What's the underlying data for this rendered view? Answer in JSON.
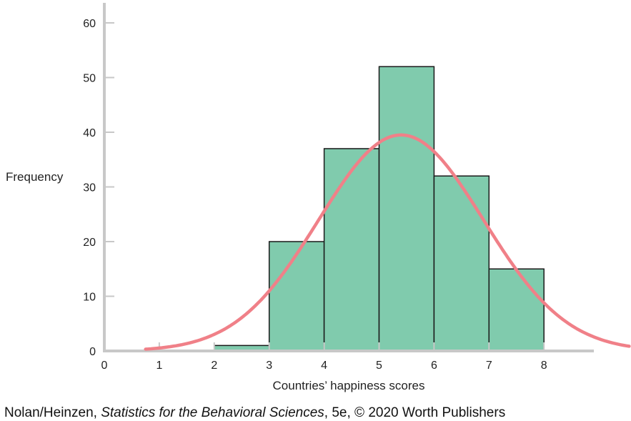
{
  "chart_data": {
    "type": "bar",
    "title": "",
    "xlabel": "Countries’ happiness scores",
    "ylabel": "Frequency",
    "xlim": [
      0,
      8.9
    ],
    "ylim": [
      0,
      63
    ],
    "xticks": [
      "0",
      "1",
      "2",
      "3",
      "4",
      "5",
      "6",
      "7",
      "8"
    ],
    "yticks": [
      "0",
      "10",
      "20",
      "30",
      "40",
      "50",
      "60"
    ],
    "bins": [
      {
        "x0": 2,
        "x1": 3,
        "value": 1
      },
      {
        "x0": 3,
        "x1": 4,
        "value": 20
      },
      {
        "x0": 4,
        "x1": 5,
        "value": 37
      },
      {
        "x0": 5,
        "x1": 6,
        "value": 52
      },
      {
        "x0": 6,
        "x1": 7,
        "value": 32
      },
      {
        "x0": 7,
        "x1": 8,
        "value": 15
      }
    ],
    "overlay": {
      "type": "normal-curve",
      "mean": 5.4,
      "sd": 1.5,
      "peak": 39.5
    },
    "grid": false,
    "bar_color": "#80cbad",
    "bar_edge_color": "#1a1a1a",
    "curve_color": "#f08088",
    "axis_color": "#c8c8c8"
  },
  "caption": {
    "authors": "Nolan/Heinzen, ",
    "book_title": "Statistics for the Behavioral Sciences",
    "rest": ", 5e, © 2020 Worth Publishers"
  }
}
